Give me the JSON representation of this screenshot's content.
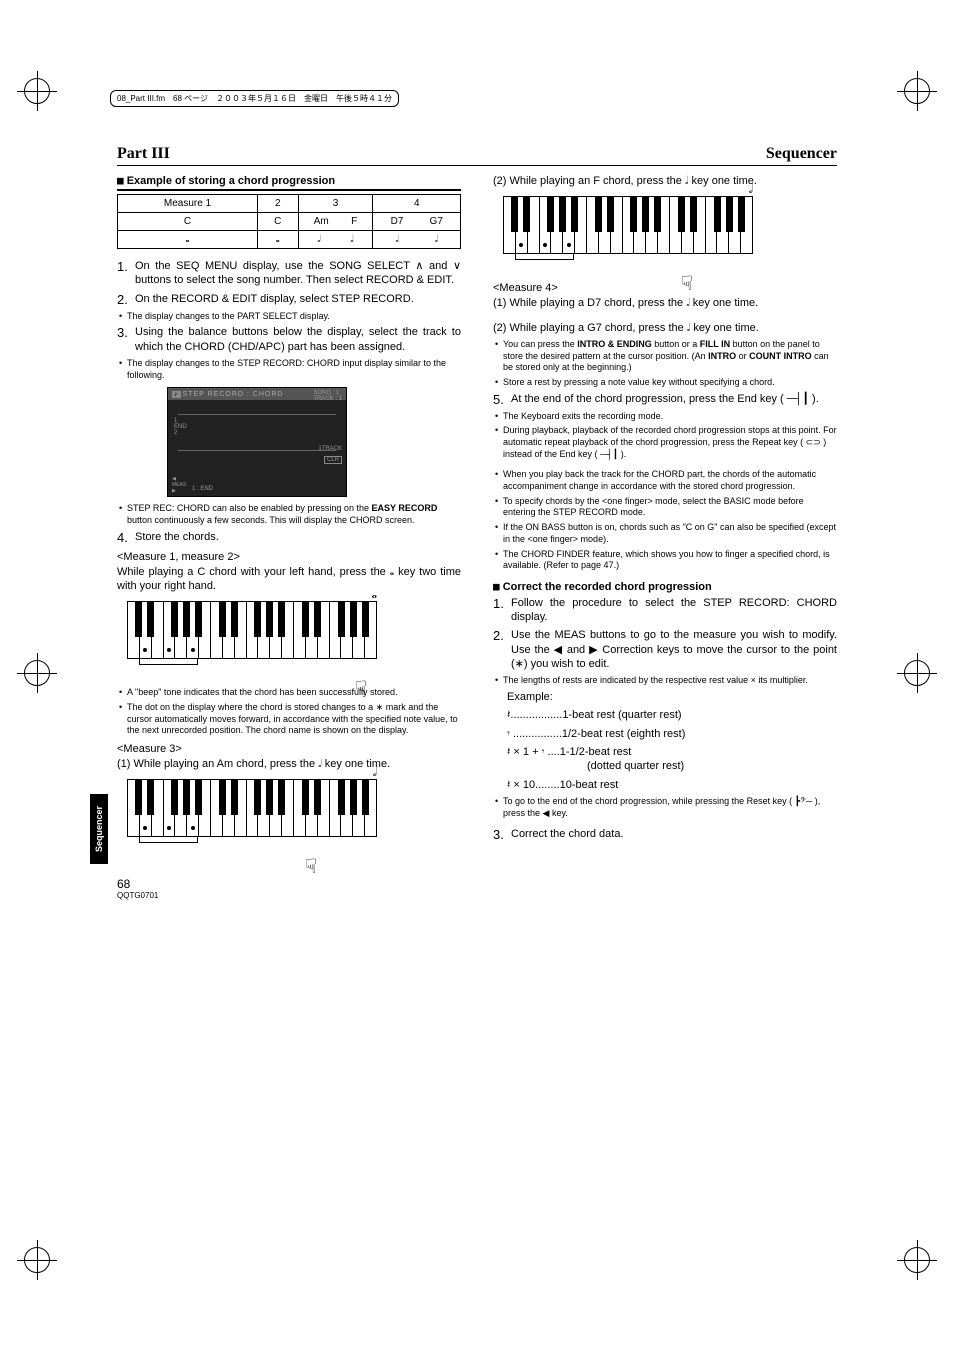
{
  "slug": "08_Part III.fm　68 ページ　２００３年５月１６日　金曜日　午後５時４１分",
  "header": {
    "left": "Part III",
    "right": "Sequencer"
  },
  "sidetab": "Sequencer",
  "left": {
    "section_title": "Example of storing a chord progression",
    "table": {
      "row1": [
        "Measure 1",
        "2",
        "3",
        "4"
      ],
      "row2": [
        "C",
        "C",
        [
          "Am",
          "F"
        ],
        [
          "D7",
          "G7"
        ]
      ],
      "row3": [
        "𝅝",
        "𝅝",
        [
          "𝅗𝅥",
          "𝅗𝅥"
        ],
        [
          "𝅗𝅥",
          "𝅗𝅥"
        ]
      ]
    },
    "step1": "On the SEQ MENU display, use the SONG SELECT ∧ and ∨ buttons to select the song number. Then select RECORD & EDIT.",
    "step2": "On the RECORD & EDIT display, select STEP RECORD.",
    "step2_b1": "The display changes to the PART SELECT display.",
    "step3": "Using the balance buttons below the display, select the track to which the CHORD (CHD/APC) part has been assigned.",
    "step3_b1": "The display changes to the STEP RECORD: CHORD input display similar to the following.",
    "display": {
      "title": "STEP RECORD : CHORD",
      "song": "SONG : 1",
      "track": "TRACK : 1",
      "end": "1 : END",
      "trk": "1TRACK",
      "clr": "CLR"
    },
    "step3_b2_pre": "STEP REC: CHORD can also be enabled by pressing on the ",
    "step3_b2_bold": "EASY RECORD",
    "step3_b2_post": " button continuously a few seconds. This will display the CHORD screen.",
    "step4": "Store the chords.",
    "m12_head": "<Measure 1, measure 2>",
    "m12_body": "While playing a C chord with your left hand, press the 𝅝 key two time with your right hand.",
    "m12_b1": "A \"beep\" tone indicates that the chord has been successfully stored.",
    "m12_b2": "The dot on the display where the chord is stored changes to a ∗ mark and the cursor automatically moves forward, in accordance with the specified note value, to the next unrecorded position. The chord name is shown on the display.",
    "m3_head": "<Measure 3>",
    "m3_1": "(1) While playing an Am chord, press the 𝅗𝅥 key one time."
  },
  "right": {
    "f_chord": "(2) While playing an F chord, press the 𝅗𝅥 key one time.",
    "m4_head": "<Measure 4>",
    "m4_1": "(1) While playing a D7 chord, press the 𝅗𝅥 key one time.",
    "m4_2": "(2) While playing a G7 chord, press the 𝅗𝅥 key one time.",
    "m4_b1_pre": "You can press the ",
    "m4_b1_b1": "INTRO & ENDING",
    "m4_b1_mid1": " button or a ",
    "m4_b1_b2": "FILL IN",
    "m4_b1_mid2": " button on the panel to store the desired pattern at the cursor position. (An ",
    "m4_b1_b3": "INTRO",
    "m4_b1_mid3": " or ",
    "m4_b1_b4": "COUNT INTRO",
    "m4_b1_post": " can be stored only at the beginning.)",
    "m4_b2": "Store a rest by pressing a note value key without specifying a chord.",
    "step5": "At the end of the chord progression, press the End key ( ─┤┃ ).",
    "step5_b1": "The Keyboard exits the recording mode.",
    "step5_b2": "During playback, playback of the recorded chord progression stops at this point. For automatic repeat playback of the chord progression, press the Repeat key ( ⊂⊃ ) instead of the End key ( ─┤┃ ).",
    "step5_b3": "When you play back the track for the CHORD part, the chords of the automatic accompaniment change in accordance with the stored chord progression.",
    "step5_b4": "To specify chords by the <one finger> mode, select the BASIC mode before entering the STEP RECORD mode.",
    "step5_b5": "If the ON BASS button is on, chords such as \"C on G\" can also be specified (except in the <one finger> mode).",
    "step5_b6": "The CHORD FINDER feature, which shows you how to finger a specified chord, is available. (Refer to page 47.)",
    "correct_title": "Correct the recorded chord progression",
    "c_step1": "Follow the procedure to select the STEP RECORD: CHORD display.",
    "c_step2": " Use the MEAS buttons to go to the measure you wish to modify. Use the ◀ and ▶ Correction keys to move the cursor to the point (∗) you wish to edit.",
    "c_step2_b1": "The lengths of rests are indicated by the respective rest value × its multiplier.",
    "example_head": "Example:",
    "ex1": "𝄽.................1-beat rest (quarter rest)",
    "ex2": "𝄾 ................1/2-beat rest (eighth rest)",
    "ex3": "𝄽 × 1 + 𝄾 ....1-1/2-beat rest",
    "ex3b": "(dotted quarter rest)",
    "ex4": "𝄽 × 10........10-beat rest",
    "c_b_last": "To go to the end of the chord progression, while pressing the Reset key ( ┣𝄢─ ), press the  ◀ key.",
    "c_step3": "Correct the chord data."
  },
  "footer": {
    "page": "68",
    "code": "QQTG0701"
  }
}
